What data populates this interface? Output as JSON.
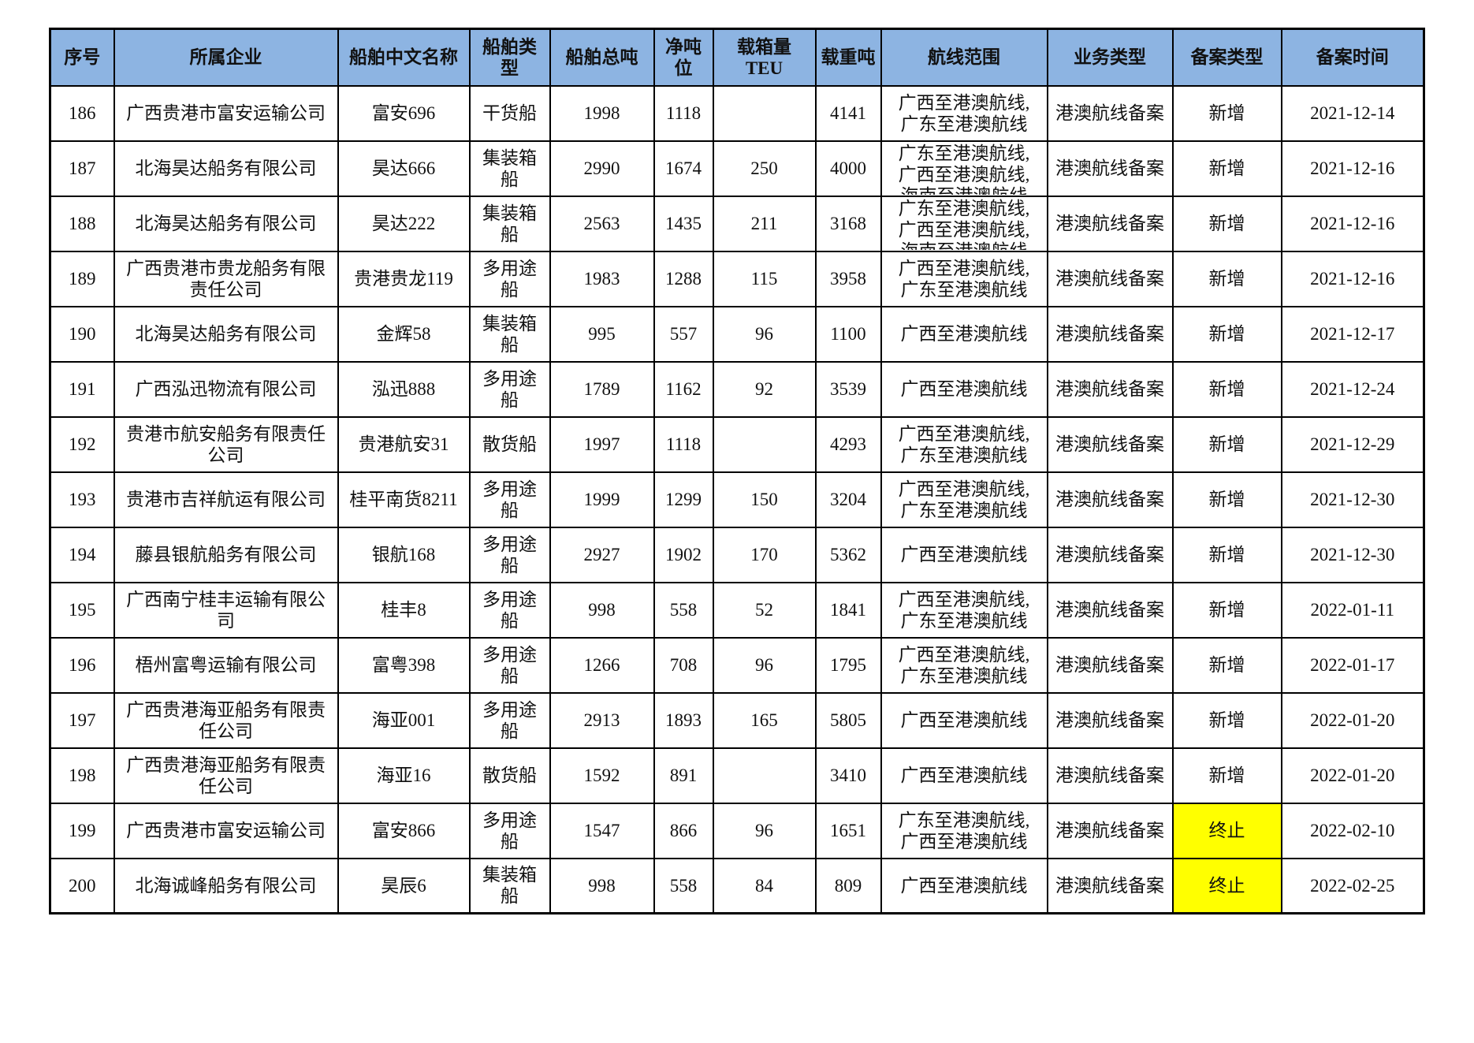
{
  "colors": {
    "header_bg": "#8DB4E2",
    "highlight": "#FFFF00",
    "border": "#000000",
    "text": "#111111"
  },
  "table": {
    "columns": [
      {
        "key": "no",
        "label": "序号"
      },
      {
        "key": "company",
        "label": "所属企业"
      },
      {
        "key": "ship_name",
        "label": "船舶中文名称"
      },
      {
        "key": "ship_type",
        "label": "船舶类型"
      },
      {
        "key": "gross_tonnage",
        "label": "船舶总吨"
      },
      {
        "key": "net_tonnage",
        "label": "净吨位"
      },
      {
        "key": "teu",
        "label": "载箱量TEU"
      },
      {
        "key": "dwt",
        "label": "载重吨"
      },
      {
        "key": "routes",
        "label": "航线范围"
      },
      {
        "key": "business_type",
        "label": "业务类型"
      },
      {
        "key": "filing_type",
        "label": "备案类型"
      },
      {
        "key": "filing_date",
        "label": "备案时间"
      }
    ],
    "rows": [
      {
        "no": "186",
        "company": "广西贵港市富安运输公司",
        "ship_name": "富安696",
        "ship_type": "干货船",
        "gross_tonnage": "1998",
        "net_tonnage": "1118",
        "teu": "",
        "dwt": "4141",
        "routes": [
          "广西至港澳航线,",
          "广东至港澳航线"
        ],
        "business_type": "港澳航线备案",
        "filing_type": "新增",
        "filing_highlight": false,
        "filing_date": "2021-12-14"
      },
      {
        "no": "187",
        "company": "北海昊达船务有限公司",
        "ship_name": "昊达666",
        "ship_type": "集装箱船",
        "gross_tonnage": "2990",
        "net_tonnage": "1674",
        "teu": "250",
        "dwt": "4000",
        "routes": [
          "广东至港澳航线,",
          "广西至港澳航线,",
          "海南至港澳航线"
        ],
        "business_type": "港澳航线备案",
        "filing_type": "新增",
        "filing_highlight": false,
        "filing_date": "2021-12-16"
      },
      {
        "no": "188",
        "company": "北海昊达船务有限公司",
        "ship_name": "昊达222",
        "ship_type": "集装箱船",
        "gross_tonnage": "2563",
        "net_tonnage": "1435",
        "teu": "211",
        "dwt": "3168",
        "routes": [
          "广东至港澳航线,",
          "广西至港澳航线,",
          "海南至港澳航线"
        ],
        "business_type": "港澳航线备案",
        "filing_type": "新增",
        "filing_highlight": false,
        "filing_date": "2021-12-16"
      },
      {
        "no": "189",
        "company": "广西贵港市贵龙船务有限责任公司",
        "ship_name": "贵港贵龙119",
        "ship_type": "多用途船",
        "gross_tonnage": "1983",
        "net_tonnage": "1288",
        "teu": "115",
        "dwt": "3958",
        "routes": [
          "广西至港澳航线,",
          "广东至港澳航线"
        ],
        "business_type": "港澳航线备案",
        "filing_type": "新增",
        "filing_highlight": false,
        "filing_date": "2021-12-16"
      },
      {
        "no": "190",
        "company": "北海昊达船务有限公司",
        "ship_name": "金辉58",
        "ship_type": "集装箱船",
        "gross_tonnage": "995",
        "net_tonnage": "557",
        "teu": "96",
        "dwt": "1100",
        "routes": [
          "广西至港澳航线"
        ],
        "business_type": "港澳航线备案",
        "filing_type": "新增",
        "filing_highlight": false,
        "filing_date": "2021-12-17"
      },
      {
        "no": "191",
        "company": "广西泓迅物流有限公司",
        "ship_name": "泓迅888",
        "ship_type": "多用途船",
        "gross_tonnage": "1789",
        "net_tonnage": "1162",
        "teu": "92",
        "dwt": "3539",
        "routes": [
          "广西至港澳航线"
        ],
        "business_type": "港澳航线备案",
        "filing_type": "新增",
        "filing_highlight": false,
        "filing_date": "2021-12-24"
      },
      {
        "no": "192",
        "company": "贵港市航安船务有限责任公司",
        "ship_name": "贵港航安31",
        "ship_type": "散货船",
        "gross_tonnage": "1997",
        "net_tonnage": "1118",
        "teu": "",
        "dwt": "4293",
        "routes": [
          "广西至港澳航线,",
          "广东至港澳航线"
        ],
        "business_type": "港澳航线备案",
        "filing_type": "新增",
        "filing_highlight": false,
        "filing_date": "2021-12-29"
      },
      {
        "no": "193",
        "company": "贵港市吉祥航运有限公司",
        "ship_name": "桂平南货8211",
        "ship_type": "多用途船",
        "gross_tonnage": "1999",
        "net_tonnage": "1299",
        "teu": "150",
        "dwt": "3204",
        "routes": [
          "广西至港澳航线,",
          "广东至港澳航线"
        ],
        "business_type": "港澳航线备案",
        "filing_type": "新增",
        "filing_highlight": false,
        "filing_date": "2021-12-30"
      },
      {
        "no": "194",
        "company": "藤县银航船务有限公司",
        "ship_name": "银航168",
        "ship_type": "多用途船",
        "gross_tonnage": "2927",
        "net_tonnage": "1902",
        "teu": "170",
        "dwt": "5362",
        "routes": [
          "广西至港澳航线"
        ],
        "business_type": "港澳航线备案",
        "filing_type": "新增",
        "filing_highlight": false,
        "filing_date": "2021-12-30"
      },
      {
        "no": "195",
        "company": "广西南宁桂丰运输有限公司",
        "ship_name": "桂丰8",
        "ship_type": "多用途船",
        "gross_tonnage": "998",
        "net_tonnage": "558",
        "teu": "52",
        "dwt": "1841",
        "routes": [
          "广西至港澳航线,",
          "广东至港澳航线"
        ],
        "business_type": "港澳航线备案",
        "filing_type": "新增",
        "filing_highlight": false,
        "filing_date": "2022-01-11"
      },
      {
        "no": "196",
        "company": "梧州富粤运输有限公司",
        "ship_name": "富粤398",
        "ship_type": "多用途船",
        "gross_tonnage": "1266",
        "net_tonnage": "708",
        "teu": "96",
        "dwt": "1795",
        "routes": [
          "广西至港澳航线,",
          "广东至港澳航线"
        ],
        "business_type": "港澳航线备案",
        "filing_type": "新增",
        "filing_highlight": false,
        "filing_date": "2022-01-17"
      },
      {
        "no": "197",
        "company": "广西贵港海亚船务有限责任公司",
        "ship_name": "海亚001",
        "ship_type": "多用途船",
        "gross_tonnage": "2913",
        "net_tonnage": "1893",
        "teu": "165",
        "dwt": "5805",
        "routes": [
          "广西至港澳航线"
        ],
        "business_type": "港澳航线备案",
        "filing_type": "新增",
        "filing_highlight": false,
        "filing_date": "2022-01-20"
      },
      {
        "no": "198",
        "company": "广西贵港海亚船务有限责任公司",
        "ship_name": "海亚16",
        "ship_type": "散货船",
        "gross_tonnage": "1592",
        "net_tonnage": "891",
        "teu": "",
        "dwt": "3410",
        "routes": [
          "广西至港澳航线"
        ],
        "business_type": "港澳航线备案",
        "filing_type": "新增",
        "filing_highlight": false,
        "filing_date": "2022-01-20"
      },
      {
        "no": "199",
        "company": "广西贵港市富安运输公司",
        "ship_name": "富安866",
        "ship_type": "多用途船",
        "gross_tonnage": "1547",
        "net_tonnage": "866",
        "teu": "96",
        "dwt": "1651",
        "routes": [
          "广东至港澳航线,",
          "广西至港澳航线"
        ],
        "business_type": "港澳航线备案",
        "filing_type": "终止",
        "filing_highlight": true,
        "filing_date": "2022-02-10"
      },
      {
        "no": "200",
        "company": "北海诚峰船务有限公司",
        "ship_name": "昊辰6",
        "ship_type": "集装箱船",
        "gross_tonnage": "998",
        "net_tonnage": "558",
        "teu": "84",
        "dwt": "809",
        "routes": [
          "广西至港澳航线"
        ],
        "business_type": "港澳航线备案",
        "filing_type": "终止",
        "filing_highlight": true,
        "filing_date": "2022-02-25"
      }
    ]
  }
}
